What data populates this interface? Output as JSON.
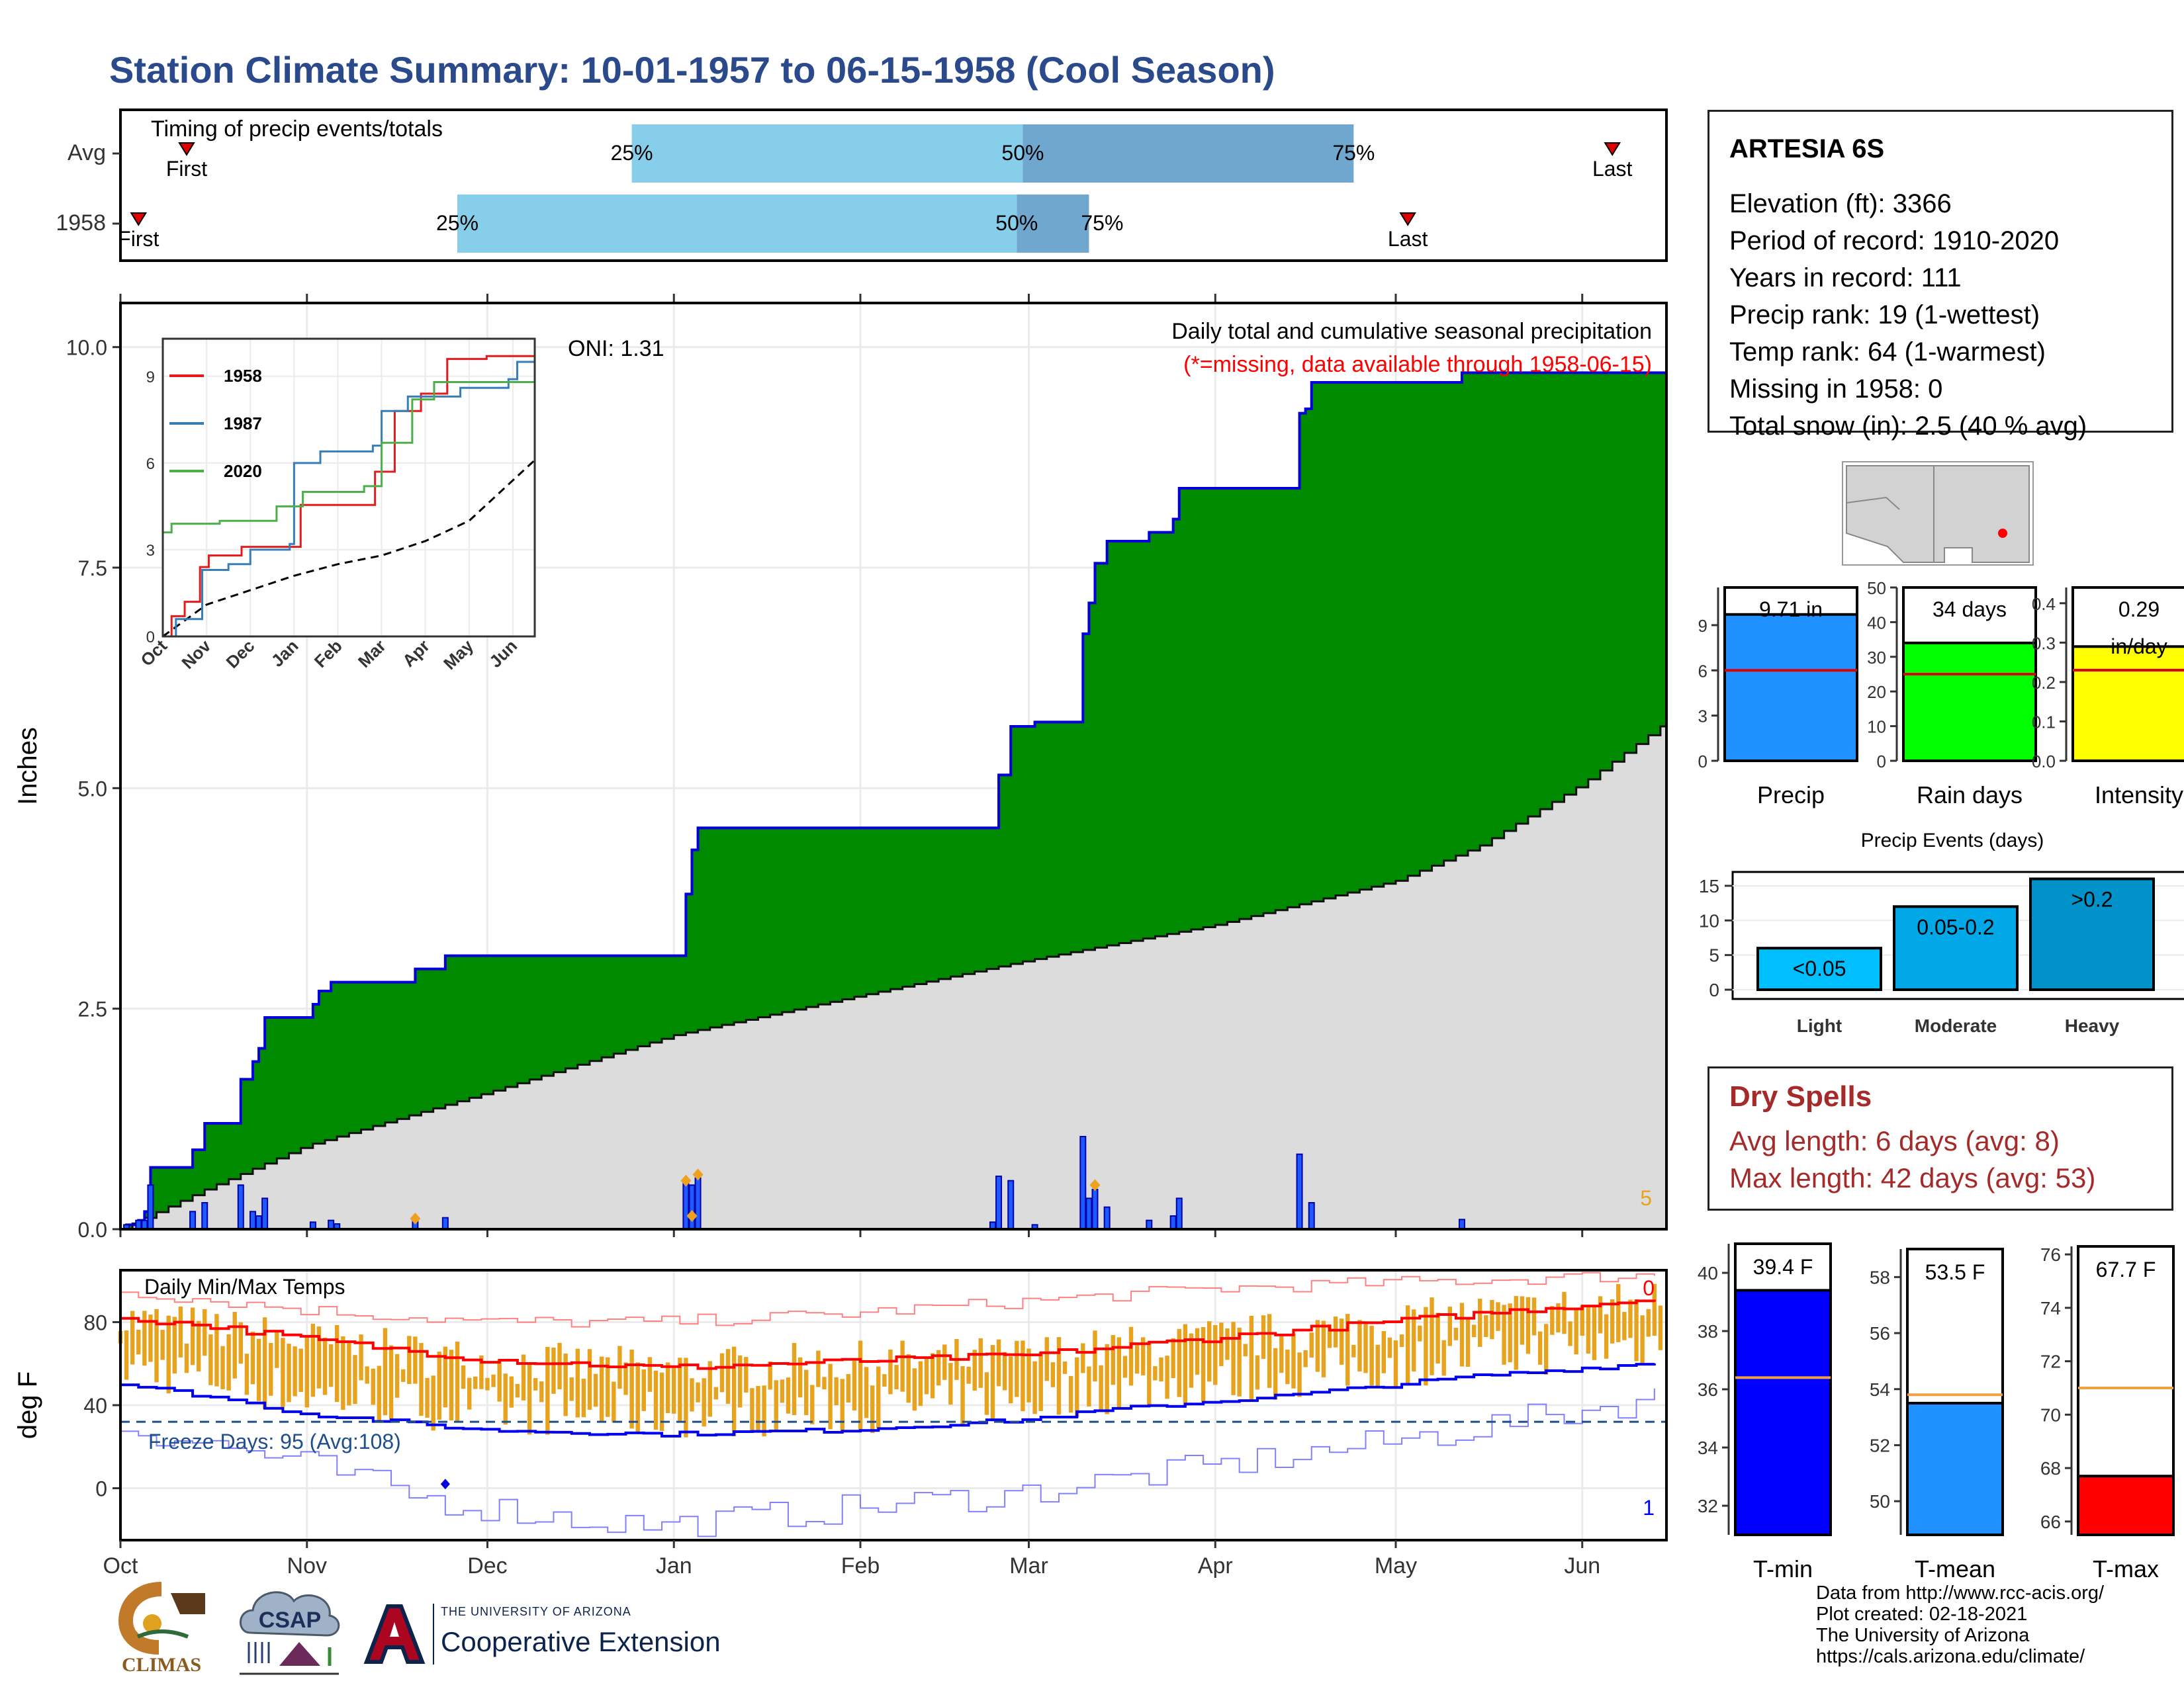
{
  "page": {
    "title": "Station Climate Summary: 10-01-1957 to 06-15-1958 (Cool Season)"
  },
  "colors": {
    "title": "#2a4a8c",
    "green": "#008a00",
    "blue_line": "#0000dd",
    "gray_area": "#dcdcdc",
    "light_blue": "#87ceeb",
    "mid_blue": "#6fa7cf",
    "red": "#ff0000",
    "orange": "#e8a31e",
    "tmin_blue": "#0000ff",
    "tmean_blue": "#1e90ff",
    "dry_red": "#a52a2a"
  },
  "station": {
    "name": "ARTESIA 6S",
    "lines": [
      "Elevation (ft): 3366",
      "Period of record: 1910-2020",
      "Years in record: 111",
      "Precip rank: 19 (1-wettest)",
      "Temp rank: 64 (1-warmest)",
      "Missing in 1958: 0",
      "Total snow (in): 2.5 (40 % avg)"
    ]
  },
  "dry_spells": {
    "title": "Dry Spells",
    "avg": "Avg length: 6 days (avg: 8)",
    "max": "Max length: 42 days (avg: 53)"
  },
  "credits": [
    "Data from http://www.rcc-acis.org/",
    "Plot created: 02-18-2021",
    "The University of Arizona",
    "https://cals.arizona.edu/climate/"
  ],
  "logos": {
    "climas": "CLIMAS",
    "csap": "CSAP",
    "ua_small": "THE UNIVERSITY OF ARIZONA",
    "ua_big": "Cooperative Extension"
  },
  "chart_data": [
    {
      "id": "timing",
      "type": "bar",
      "title": "Timing of precip events/totals",
      "rows": [
        "Avg",
        "1958"
      ],
      "avg": {
        "p25": "1957-12-25",
        "p50": "1958-02-28",
        "p75": "1958-04-24",
        "first": "1957-10-12",
        "last": "1958-06-06"
      },
      "y1958": {
        "p25": "1957-11-26",
        "p50": "1958-02-27",
        "p75": "1958-03-11",
        "first": "1957-10-04",
        "last": "1958-05-03"
      },
      "labels": {
        "p25": "25%",
        "p50": "50%",
        "p75": "75%",
        "first": "First",
        "last": "Last"
      }
    },
    {
      "id": "precip",
      "type": "area",
      "title": "Daily total and cumulative seasonal precipitation",
      "subtitle": "(*=missing, data available through 1958-06-15)",
      "oni": "ONI: 1.31",
      "ylabel": "Inches",
      "ylim": [
        0,
        10.5
      ],
      "yticks": [
        "0.0",
        "2.5",
        "5.0",
        "7.5",
        "10.0"
      ],
      "xlim": [
        "1957-10-01",
        "1958-06-15"
      ],
      "xticks": [
        "Oct",
        "Nov",
        "Dec",
        "Jan",
        "Feb",
        "Mar",
        "Apr",
        "May",
        "Jun"
      ],
      "corner_count": "5",
      "cumulative_1958": [
        [
          "1957-10-01",
          0
        ],
        [
          "1957-10-02",
          0.05
        ],
        [
          "1957-10-04",
          0.1
        ],
        [
          "1957-10-05",
          0.2
        ],
        [
          "1957-10-06",
          0.7
        ],
        [
          "1957-10-12",
          0.7
        ],
        [
          "1957-10-13",
          0.9
        ],
        [
          "1957-10-15",
          1.2
        ],
        [
          "1957-10-20",
          1.2
        ],
        [
          "1957-10-21",
          1.7
        ],
        [
          "1957-10-23",
          1.9
        ],
        [
          "1957-10-24",
          2.05
        ],
        [
          "1957-10-25",
          2.4
        ],
        [
          "1957-11-01",
          2.4
        ],
        [
          "1957-11-02",
          2.55
        ],
        [
          "1957-11-03",
          2.7
        ],
        [
          "1957-11-05",
          2.8
        ],
        [
          "1957-11-18",
          2.8
        ],
        [
          "1957-11-19",
          2.95
        ],
        [
          "1957-11-23",
          2.95
        ],
        [
          "1957-11-24",
          3.1
        ],
        [
          "1958-01-02",
          3.1
        ],
        [
          "1958-01-03",
          3.8
        ],
        [
          "1958-01-04",
          4.3
        ],
        [
          "1958-01-05",
          4.55
        ],
        [
          "1958-02-23",
          4.55
        ],
        [
          "1958-02-24",
          5.15
        ],
        [
          "1958-02-26",
          5.7
        ],
        [
          "1958-03-02",
          5.75
        ],
        [
          "1958-03-09",
          5.75
        ],
        [
          "1958-03-10",
          6.75
        ],
        [
          "1958-03-11",
          7.1
        ],
        [
          "1958-03-12",
          7.55
        ],
        [
          "1958-03-14",
          7.8
        ],
        [
          "1958-03-20",
          7.8
        ],
        [
          "1958-03-21",
          7.9
        ],
        [
          "1958-03-25",
          8.05
        ],
        [
          "1958-03-26",
          8.4
        ],
        [
          "1958-04-14",
          8.4
        ],
        [
          "1958-04-15",
          9.25
        ],
        [
          "1958-04-16",
          9.3
        ],
        [
          "1958-04-17",
          9.6
        ],
        [
          "1958-05-11",
          9.6
        ],
        [
          "1958-05-12",
          9.71
        ],
        [
          "1958-06-15",
          9.71
        ]
      ],
      "cumulative_avg": [
        [
          "1957-10-01",
          0
        ],
        [
          "1957-10-15",
          0.45
        ],
        [
          "1957-11-01",
          0.95
        ],
        [
          "1957-12-01",
          1.55
        ],
        [
          "1958-01-01",
          2.2
        ],
        [
          "1958-02-01",
          2.65
        ],
        [
          "1958-03-01",
          3.05
        ],
        [
          "1958-04-01",
          3.45
        ],
        [
          "1958-05-01",
          3.95
        ],
        [
          "1958-05-15",
          4.35
        ],
        [
          "1958-06-01",
          5.05
        ],
        [
          "1958-06-15",
          5.75
        ]
      ],
      "daily_bars": [
        [
          "1957-10-02",
          0.05
        ],
        [
          "1957-10-04",
          0.1
        ],
        [
          "1957-10-05",
          0.1
        ],
        [
          "1957-10-06",
          0.5
        ],
        [
          "1957-10-13",
          0.2
        ],
        [
          "1957-10-15",
          0.3
        ],
        [
          "1957-10-21",
          0.5
        ],
        [
          "1957-10-23",
          0.2
        ],
        [
          "1957-10-24",
          0.15
        ],
        [
          "1957-10-25",
          0.35
        ],
        [
          "1957-11-02",
          0.08
        ],
        [
          "1957-11-05",
          0.1
        ],
        [
          "1957-11-06",
          0.06
        ],
        [
          "1957-11-19",
          0.12
        ],
        [
          "1957-11-24",
          0.13
        ],
        [
          "1958-01-03",
          0.55
        ],
        [
          "1958-01-04",
          0.5
        ],
        [
          "1958-01-05",
          0.58
        ],
        [
          "1958-02-23",
          0.08
        ],
        [
          "1958-02-24",
          0.6
        ],
        [
          "1958-02-26",
          0.55
        ],
        [
          "1958-03-02",
          0.05
        ],
        [
          "1958-03-10",
          1.05
        ],
        [
          "1958-03-11",
          0.35
        ],
        [
          "1958-03-12",
          0.45
        ],
        [
          "1958-03-14",
          0.25
        ],
        [
          "1958-03-21",
          0.1
        ],
        [
          "1958-03-25",
          0.15
        ],
        [
          "1958-03-26",
          0.35
        ],
        [
          "1958-04-15",
          0.85
        ],
        [
          "1958-04-17",
          0.3
        ],
        [
          "1958-05-12",
          0.11
        ]
      ],
      "snow_marks": [
        [
          "1957-11-19",
          0.12
        ],
        [
          "1958-01-03",
          0.55
        ],
        [
          "1958-01-05",
          0.62
        ],
        [
          "1958-01-04",
          0.15
        ],
        [
          "1958-03-12",
          0.5
        ]
      ],
      "inset": {
        "xticks": [
          "Oct",
          "Nov",
          "Dec",
          "Jan",
          "Feb",
          "Mar",
          "Apr",
          "May",
          "Jun"
        ],
        "yticks": [
          "0",
          "3",
          "6",
          "9"
        ],
        "ylim": [
          0,
          10.3
        ],
        "series": [
          {
            "name": "1958",
            "color": "#e41a1c",
            "values": [
              [
                0,
                0
              ],
              [
                0.2,
                0.7
              ],
              [
                0.5,
                1.2
              ],
              [
                0.85,
                2.4
              ],
              [
                1.05,
                2.8
              ],
              [
                1.8,
                3.1
              ],
              [
                3.05,
                3.1
              ],
              [
                3.15,
                4.55
              ],
              [
                4.75,
                4.55
              ],
              [
                4.85,
                5.7
              ],
              [
                5.3,
                7.8
              ],
              [
                5.9,
                8.4
              ],
              [
                6.5,
                9.6
              ],
              [
                7.4,
                9.7
              ],
              [
                8.5,
                9.71
              ]
            ]
          },
          {
            "name": "1987",
            "color": "#377eb8",
            "values": [
              [
                0,
                0
              ],
              [
                0.3,
                0.6
              ],
              [
                0.9,
                2.3
              ],
              [
                1.5,
                2.5
              ],
              [
                2.0,
                3.0
              ],
              [
                2.9,
                3.2
              ],
              [
                3.0,
                6.0
              ],
              [
                3.6,
                6.4
              ],
              [
                4.8,
                6.6
              ],
              [
                5.0,
                7.8
              ],
              [
                5.6,
                8.3
              ],
              [
                6.8,
                8.6
              ],
              [
                7.9,
                8.9
              ],
              [
                8.1,
                9.5
              ],
              [
                8.5,
                10.3
              ]
            ]
          },
          {
            "name": "2020",
            "color": "#4daf4a",
            "values": [
              [
                0,
                3.6
              ],
              [
                0.2,
                3.9
              ],
              [
                1.3,
                4.0
              ],
              [
                2.6,
                4.5
              ],
              [
                3.2,
                5.0
              ],
              [
                4.6,
                5.2
              ],
              [
                5.0,
                6.7
              ],
              [
                5.7,
                8.2
              ],
              [
                6.2,
                8.8
              ],
              [
                8.5,
                8.8
              ]
            ]
          }
        ],
        "avg": [
          [
            0,
            0
          ],
          [
            1,
            1.1
          ],
          [
            2,
            1.6
          ],
          [
            3,
            2.1
          ],
          [
            4,
            2.5
          ],
          [
            5,
            2.8
          ],
          [
            6,
            3.3
          ],
          [
            7,
            4.0
          ],
          [
            8,
            5.4
          ],
          [
            8.5,
            6.1
          ]
        ]
      }
    },
    {
      "id": "temps",
      "type": "line",
      "title": "Daily Min/Max Temps",
      "ylabel": "deg F",
      "yticks": [
        "0",
        "40",
        "80"
      ],
      "ylim": [
        -25,
        105
      ],
      "freeze_label": "Freeze Days: 95 (Avg:108)",
      "freeze_line": 32,
      "top_count": "0",
      "bottom_count": "1",
      "normal_max": [
        [
          0,
          82
        ],
        [
          15,
          78
        ],
        [
          30,
          72
        ],
        [
          60,
          62
        ],
        [
          90,
          58
        ],
        [
          120,
          61
        ],
        [
          150,
          64
        ],
        [
          165,
          68
        ],
        [
          195,
          76
        ],
        [
          225,
          84
        ],
        [
          258,
          92
        ]
      ],
      "normal_min": [
        [
          0,
          50
        ],
        [
          15,
          44
        ],
        [
          30,
          36
        ],
        [
          60,
          28
        ],
        [
          90,
          26
        ],
        [
          120,
          28
        ],
        [
          150,
          33
        ],
        [
          165,
          38
        ],
        [
          195,
          45
        ],
        [
          225,
          54
        ],
        [
          258,
          61
        ]
      ],
      "record_max": [
        [
          0,
          95
        ],
        [
          30,
          86
        ],
        [
          60,
          80
        ],
        [
          90,
          80
        ],
        [
          120,
          84
        ],
        [
          150,
          90
        ],
        [
          180,
          96
        ],
        [
          210,
          99
        ],
        [
          258,
          103
        ]
      ],
      "record_min": [
        [
          0,
          30
        ],
        [
          30,
          12
        ],
        [
          50,
          -5
        ],
        [
          75,
          -15
        ],
        [
          90,
          -18
        ],
        [
          120,
          -10
        ],
        [
          150,
          -2
        ],
        [
          180,
          10
        ],
        [
          210,
          22
        ],
        [
          258,
          45
        ]
      ]
    },
    {
      "id": "precip_bars",
      "type": "bar",
      "categories": [
        "Precip",
        "Rain days",
        "Intensity"
      ],
      "values": [
        9.71,
        34,
        0.29
      ],
      "labels": [
        "9.71 in",
        "34 days",
        "0.29\nin/day"
      ],
      "averages": [
        6.0,
        25,
        0.23
      ],
      "colors": [
        "#1e90ff",
        "#00ff00",
        "#ffff00"
      ],
      "axes": [
        {
          "ylim": [
            0,
            11.5
          ],
          "ticks": [
            0,
            3,
            6,
            9
          ]
        },
        {
          "ylim": [
            0,
            50
          ],
          "ticks": [
            0,
            10,
            20,
            30,
            40,
            50
          ]
        },
        {
          "ylim": [
            0,
            0.44
          ],
          "ticks": [
            0.0,
            0.1,
            0.2,
            0.3,
            0.4
          ],
          "tick_labels": [
            "0.0",
            "0.1",
            "0.2",
            "0.3",
            "0.4"
          ]
        }
      ]
    },
    {
      "id": "events",
      "type": "bar",
      "title": "Precip Events (days)",
      "categories": [
        "Light",
        "Moderate",
        "Heavy"
      ],
      "values": [
        6,
        12,
        16
      ],
      "labels": [
        "<0.05",
        "0.05-0.2",
        ">0.2"
      ],
      "colors": [
        "#00bfff",
        "#00a8e8",
        "#0092c8"
      ],
      "ylim": [
        0,
        17
      ],
      "yticks": [
        0,
        5,
        10,
        15
      ]
    },
    {
      "id": "temp_bars",
      "type": "bar",
      "categories": [
        "T-min",
        "T-mean",
        "T-max"
      ],
      "values": [
        39.4,
        53.5,
        67.7
      ],
      "labels": [
        "39.4 F",
        "53.5 F",
        "67.7 F"
      ],
      "averages": [
        36.4,
        53.8,
        71.0
      ],
      "colors": [
        "#0000ff",
        "#1e90ff",
        "#ff0000"
      ],
      "axes": [
        {
          "ylim": [
            31,
            41
          ],
          "ticks": [
            32,
            34,
            36,
            38,
            40
          ]
        },
        {
          "ylim": [
            48.8,
            59
          ],
          "ticks": [
            50,
            52,
            54,
            56,
            58
          ]
        },
        {
          "ylim": [
            65.5,
            76.3
          ],
          "ticks": [
            66,
            68,
            70,
            72,
            74,
            76
          ]
        }
      ]
    }
  ]
}
